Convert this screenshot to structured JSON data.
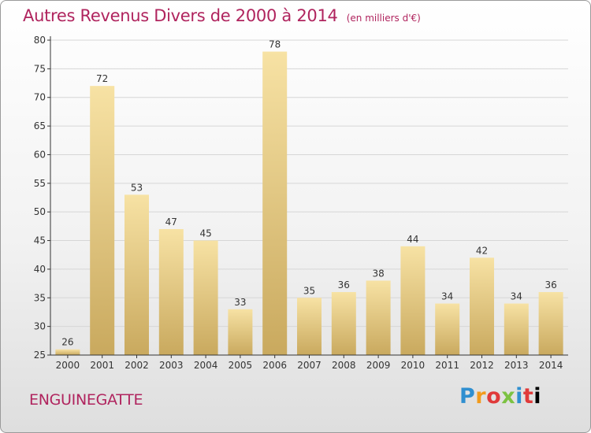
{
  "header": {
    "title": "Autres Revenus Divers de 2000 à 2014",
    "unit": "(en milliers d'€)"
  },
  "footer": {
    "commune": "ENGUINEGATTE",
    "logo_letters": [
      "P",
      "r",
      "o",
      "x",
      "i",
      "t",
      "i"
    ]
  },
  "colors": {
    "title": "#b0245e",
    "bar_light": "#f7e2a4",
    "bar_dark": "#c9a95e",
    "axis": "#333333",
    "grid": "#d6d6d6"
  },
  "chart_data": {
    "type": "bar",
    "title": "Autres Revenus Divers de 2000 à 2014",
    "subtitle": "(en milliers d'€)",
    "xlabel": "",
    "ylabel": "",
    "categories": [
      "2000",
      "2001",
      "2002",
      "2003",
      "2004",
      "2005",
      "2006",
      "2007",
      "2008",
      "2009",
      "2010",
      "2011",
      "2012",
      "2013",
      "2014"
    ],
    "values": [
      26,
      72,
      53,
      47,
      45,
      33,
      78,
      35,
      36,
      38,
      44,
      34,
      42,
      34,
      36
    ],
    "ylim": [
      25,
      80
    ],
    "yticks": [
      25,
      30,
      35,
      40,
      45,
      50,
      55,
      60,
      65,
      70,
      75,
      80
    ],
    "grid": true,
    "data_labels": true
  }
}
